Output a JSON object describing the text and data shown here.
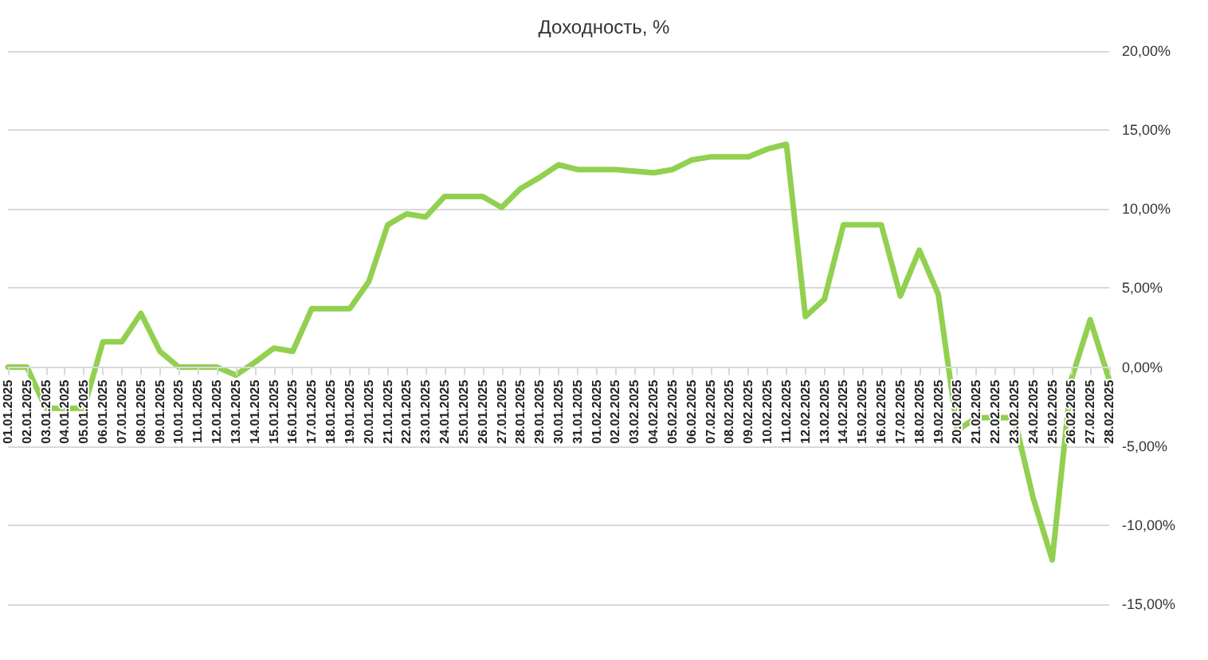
{
  "chart_data": {
    "type": "line",
    "title": "Доходность, %",
    "categories": [
      "01.01.2025",
      "02.01.2025",
      "03.01.2025",
      "04.01.2025",
      "05.01.2025",
      "06.01.2025",
      "07.01.2025",
      "08.01.2025",
      "09.01.2025",
      "10.01.2025",
      "11.01.2025",
      "12.01.2025",
      "13.01.2025",
      "14.01.2025",
      "15.01.2025",
      "16.01.2025",
      "17.01.2025",
      "18.01.2025",
      "19.01.2025",
      "20.01.2025",
      "21.01.2025",
      "22.01.2025",
      "23.01.2025",
      "24.01.2025",
      "25.01.2025",
      "26.01.2025",
      "27.01.2025",
      "28.01.2025",
      "29.01.2025",
      "30.01.2025",
      "31.01.2025",
      "01.02.2025",
      "02.02.2025",
      "03.02.2025",
      "04.02.2025",
      "05.02.2025",
      "06.02.2025",
      "07.02.2025",
      "08.02.2025",
      "09.02.2025",
      "10.02.2025",
      "11.02.2025",
      "12.02.2025",
      "13.02.2025",
      "14.02.2025",
      "15.02.2025",
      "16.02.2025",
      "17.02.2025",
      "18.02.2025",
      "19.02.2025",
      "20.02.2025",
      "21.02.2025",
      "22.02.2025",
      "23.02.2025",
      "24.02.2025",
      "25.02.2025",
      "26.02.2025",
      "27.02.2025",
      "28.02.2025"
    ],
    "series": [
      {
        "color": "#92d050",
        "values": [
          0,
          0,
          -2.6,
          -2.6,
          -2.6,
          1.6,
          1.6,
          3.4,
          1.0,
          0,
          0,
          0,
          -0.5,
          0.3,
          1.2,
          1.0,
          3.7,
          3.7,
          3.7,
          5.4,
          9.0,
          9.7,
          9.5,
          10.8,
          10.8,
          10.8,
          10.1,
          11.3,
          12.0,
          12.8,
          12.5,
          12.5,
          12.5,
          12.4,
          12.3,
          12.5,
          13.1,
          13.3,
          13.3,
          13.3,
          13.8,
          14.1,
          3.2,
          4.3,
          9.0,
          9.0,
          9.0,
          4.5,
          7.4,
          4.6,
          -4.0,
          -3.2,
          -3.2,
          -3.2,
          -8.3,
          -12.2,
          -0.8,
          3.0,
          -0.8
        ]
      }
    ],
    "ylim": [
      -15,
      20
    ],
    "yticks": [
      {
        "value": -15,
        "label": "-15,00%"
      },
      {
        "value": -10,
        "label": "-10,00%"
      },
      {
        "value": -5,
        "label": "-5,00%"
      },
      {
        "value": 0,
        "label": "0,00%"
      },
      {
        "value": 5,
        "label": "5,00%"
      },
      {
        "value": 10,
        "label": "10,00%"
      },
      {
        "value": 15,
        "label": "15,00%"
      },
      {
        "value": 20,
        "label": "20,00%"
      }
    ],
    "grid": "y",
    "marker": "none",
    "line_style": "solid"
  }
}
